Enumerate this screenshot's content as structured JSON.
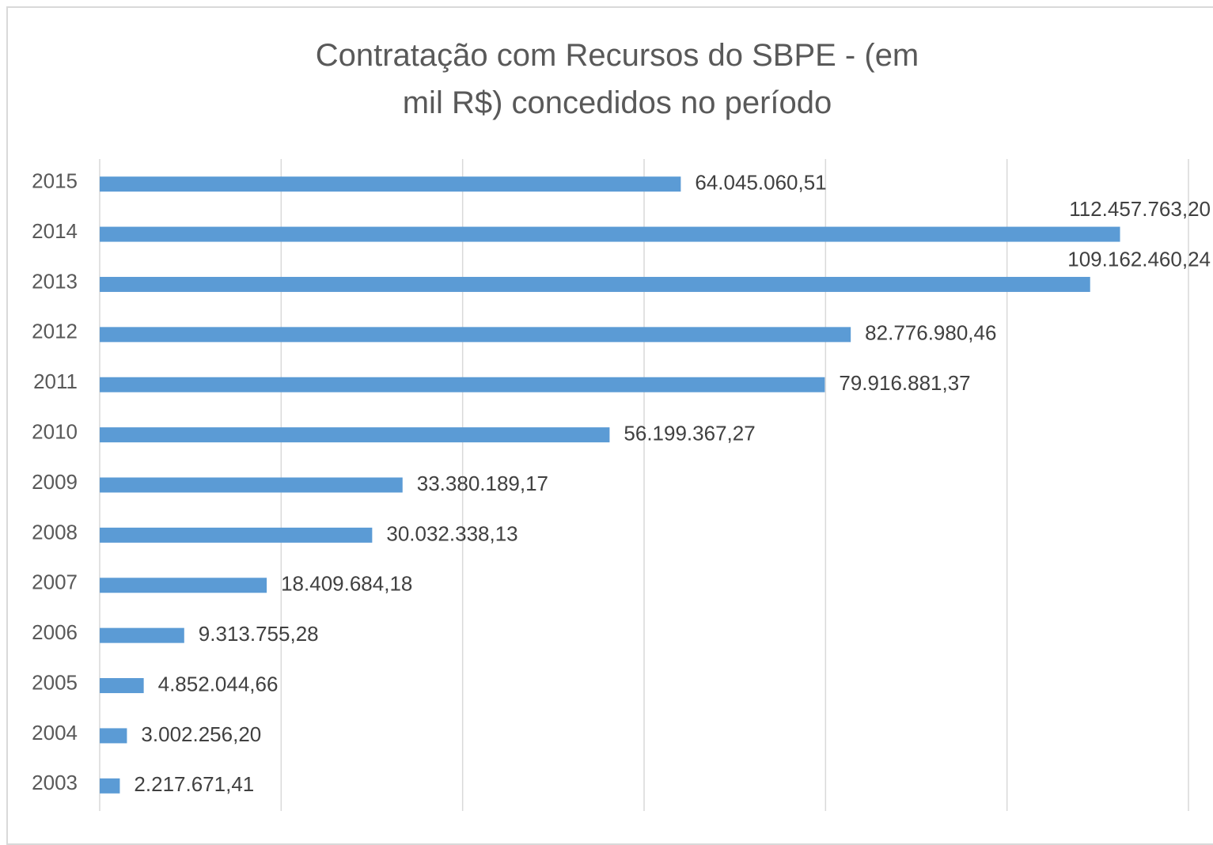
{
  "chart_data": {
    "type": "bar",
    "orientation": "horizontal",
    "title": "Contratação com Recursos do SBPE - (em mil R$) concedidos no período",
    "categories": [
      "2015",
      "2014",
      "2013",
      "2012",
      "2011",
      "2010",
      "2009",
      "2008",
      "2007",
      "2006",
      "2005",
      "2004",
      "2003"
    ],
    "values": [
      64045060.51,
      112457763.2,
      109162460.24,
      82776980.46,
      79916881.37,
      56199367.27,
      33380189.17,
      30032338.13,
      18409684.18,
      9313755.28,
      4852044.66,
      3002256.2,
      2217671.41
    ],
    "value_labels": [
      "64.045.060,51",
      "112.457.763,20",
      "109.162.460,24",
      "82.776.980,46",
      "79.916.881,37",
      "56.199.367,27",
      "33.380.189,17",
      "30.032.338,13",
      "18.409.684,18",
      "9.313.755,28",
      "4.852.044,66",
      "3.002.256,20",
      "2.217.671,41"
    ],
    "color": "#5b9bd5",
    "xlim": [
      0,
      120000000
    ],
    "xticks": [
      0,
      20000000,
      40000000,
      60000000,
      80000000,
      100000000,
      120000000
    ],
    "grid": true
  }
}
